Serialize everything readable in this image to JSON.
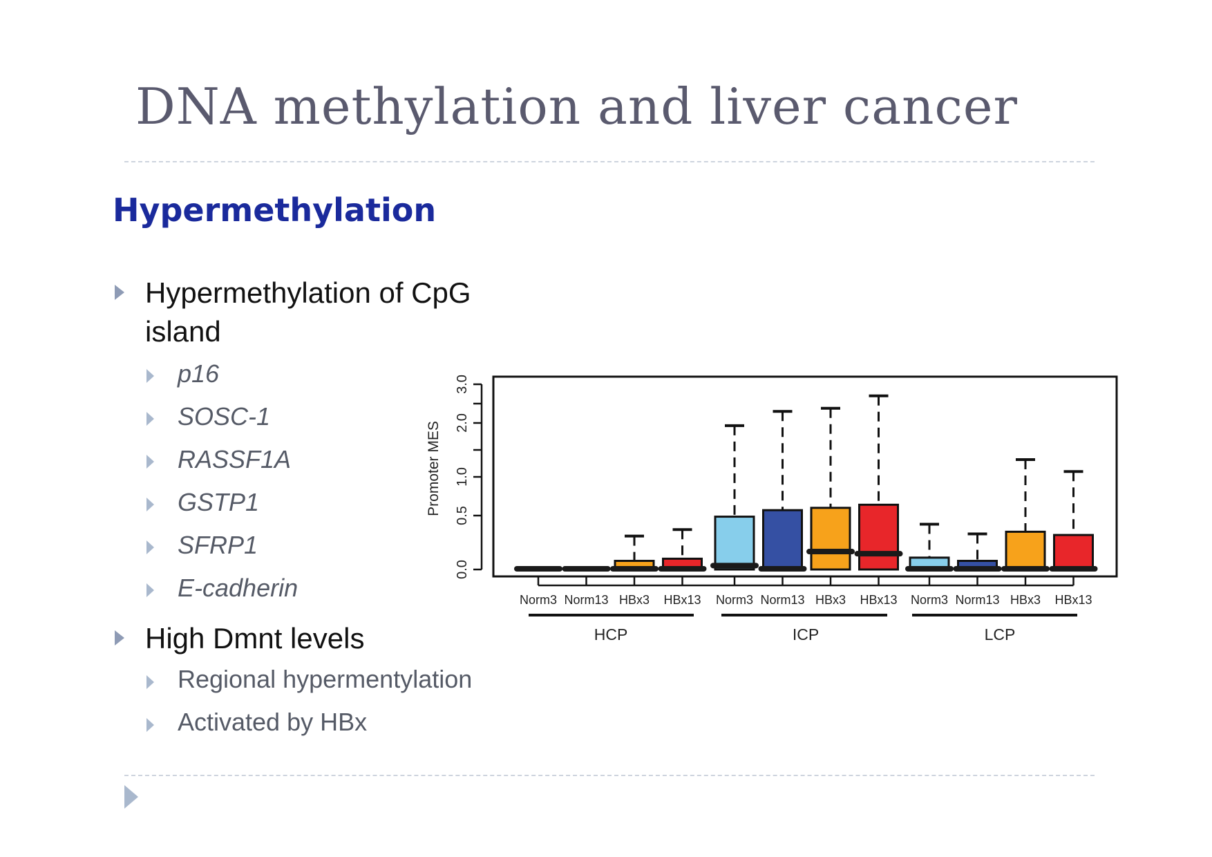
{
  "slide": {
    "title": "DNA methylation and liver cancer",
    "subtitle": "Hypermethylation"
  },
  "bullets": [
    {
      "text_line1": "Hypermethylation of CpG",
      "text_line2": "island",
      "children": [
        "p16",
        "SOSC-1",
        "RASSF1A",
        "GSTP1",
        "SFRP1",
        "E-cadherin"
      ]
    },
    {
      "text_line1": "High Dmnt levels",
      "children": [
        "Regional hypermentylation",
        "Activated by HBx"
      ]
    }
  ],
  "chart_data": {
    "type": "box",
    "ylabel": "Promoter MES",
    "y_ticks": [
      "0.0",
      "0.5",
      "1.0",
      "2.0",
      "3.0"
    ],
    "groups": [
      "HCP",
      "ICP",
      "LCP"
    ],
    "categories": [
      "Norm3",
      "Norm13",
      "HBx3",
      "HBx13",
      "Norm3",
      "Norm13",
      "HBx3",
      "HBx13",
      "Norm3",
      "Norm13",
      "HBx3",
      "HBx13"
    ],
    "group_of_category": [
      0,
      0,
      0,
      0,
      1,
      1,
      1,
      1,
      2,
      2,
      2,
      2
    ],
    "colors": [
      "#87CEEB",
      "#3550A3",
      "#F7A21B",
      "#E8262A",
      "#87CEEB",
      "#3550A3",
      "#F7A21B",
      "#E8262A",
      "#87CEEB",
      "#3550A3",
      "#F7A21B",
      "#E8262A"
    ],
    "boxes": [
      {
        "q1": 0.0,
        "median": 0.0,
        "q3": 0.0,
        "whisker_high": 0.0
      },
      {
        "q1": 0.0,
        "median": 0.0,
        "q3": 0.0,
        "whisker_high": 0.0
      },
      {
        "q1": 0.0,
        "median": 0.0,
        "q3": 0.08,
        "whisker_high": 0.31
      },
      {
        "q1": 0.0,
        "median": 0.0,
        "q3": 0.1,
        "whisker_high": 0.37
      },
      {
        "q1": 0.0,
        "median": 0.03,
        "q3": 0.49,
        "whisker_high": 1.95
      },
      {
        "q1": 0.0,
        "median": 0.0,
        "q3": 0.57,
        "whisker_high": 2.3
      },
      {
        "q1": 0.0,
        "median": 0.16,
        "q3": 0.6,
        "whisker_high": 2.38
      },
      {
        "q1": 0.0,
        "median": 0.14,
        "q3": 0.64,
        "whisker_high": 2.7
      },
      {
        "q1": 0.0,
        "median": 0.0,
        "q3": 0.11,
        "whisker_high": 0.42
      },
      {
        "q1": 0.0,
        "median": 0.0,
        "q3": 0.08,
        "whisker_high": 0.33
      },
      {
        "q1": 0.0,
        "median": 0.0,
        "q3": 0.35,
        "whisker_high": 1.32
      },
      {
        "q1": 0.0,
        "median": 0.0,
        "q3": 0.32,
        "whisker_high": 1.1
      }
    ]
  }
}
